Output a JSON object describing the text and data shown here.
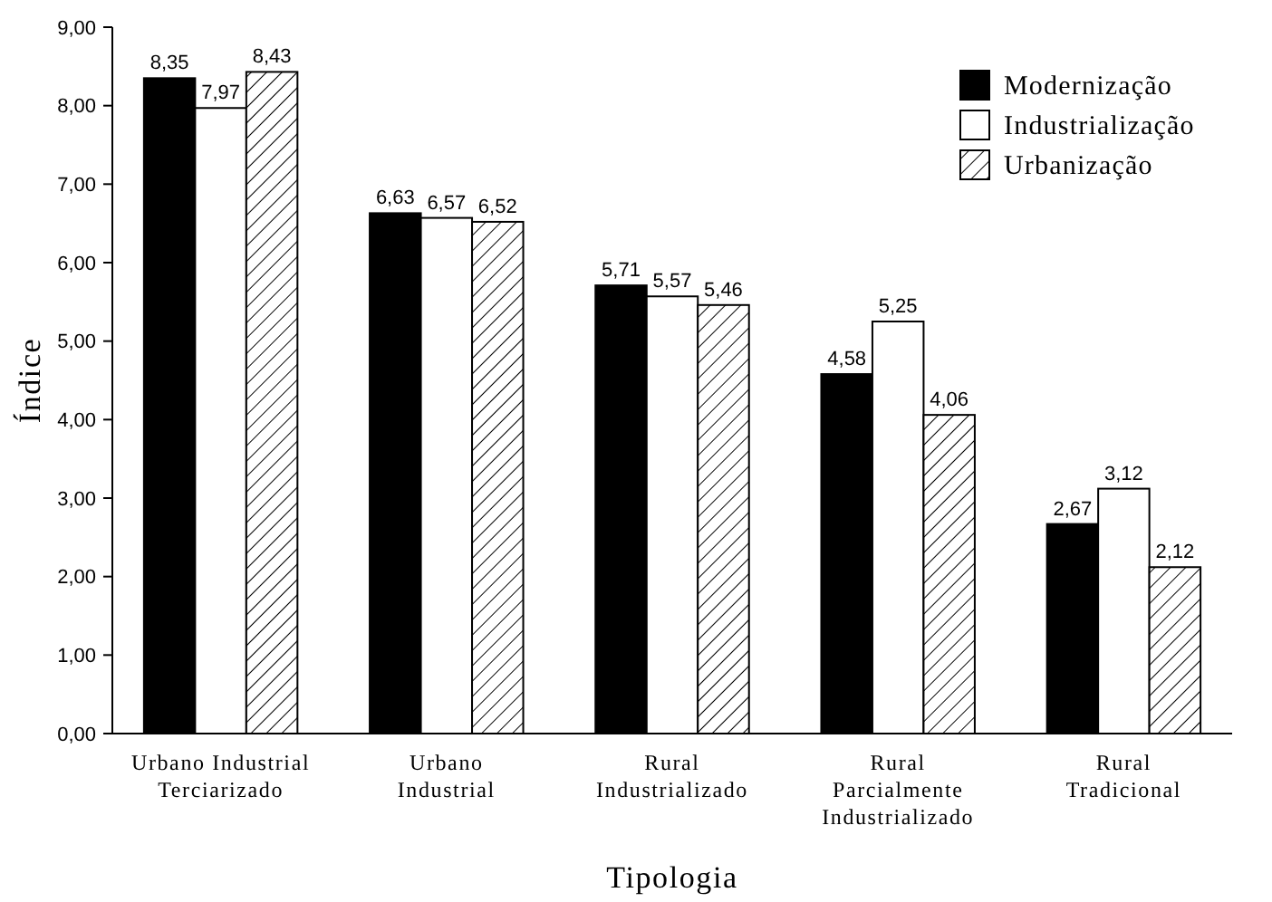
{
  "chart_data": {
    "type": "bar",
    "xlabel": "Tipologia",
    "ylabel": "Índice",
    "categories": [
      "Urbano Industrial\nTerciarizado",
      "Urbano\nIndustrial",
      "Rural\nIndustrializado",
      "Rural\nParcialmente\nIndustrializado",
      "Rural\nTradicional"
    ],
    "series": [
      {
        "name": "Modernização",
        "color": "#000000",
        "values": [
          8.35,
          6.63,
          5.71,
          4.58,
          2.67
        ],
        "value_labels": [
          "8,35",
          "6,63",
          "5,71",
          "4,58",
          "2,67"
        ]
      },
      {
        "name": "Industrialização",
        "color": "#ffffff",
        "values": [
          7.97,
          6.57,
          5.57,
          5.25,
          3.12
        ],
        "value_labels": [
          "7,97",
          "6,57",
          "5,57",
          "5,25",
          "3,12"
        ]
      },
      {
        "name": "Urbanização",
        "color": "#000000",
        "values": [
          8.43,
          6.52,
          5.46,
          4.06,
          2.12
        ],
        "value_labels": [
          "8,43",
          "6,52",
          "5,46",
          "4,06",
          "2,12"
        ]
      }
    ],
    "ylim": [
      0,
      9
    ],
    "yticks": [
      {
        "value": 0,
        "label": "0,00"
      },
      {
        "value": 1,
        "label": "1,00"
      },
      {
        "value": 2,
        "label": "2,00"
      },
      {
        "value": 3,
        "label": "3,00"
      },
      {
        "value": 4,
        "label": "4,00"
      },
      {
        "value": 5,
        "label": "5,00"
      },
      {
        "value": 6,
        "label": "6,00"
      },
      {
        "value": 7,
        "label": "7,00"
      },
      {
        "value": 8,
        "label": "8,00"
      },
      {
        "value": 9,
        "label": "9,00"
      }
    ],
    "grid": false,
    "legend": "top right"
  }
}
